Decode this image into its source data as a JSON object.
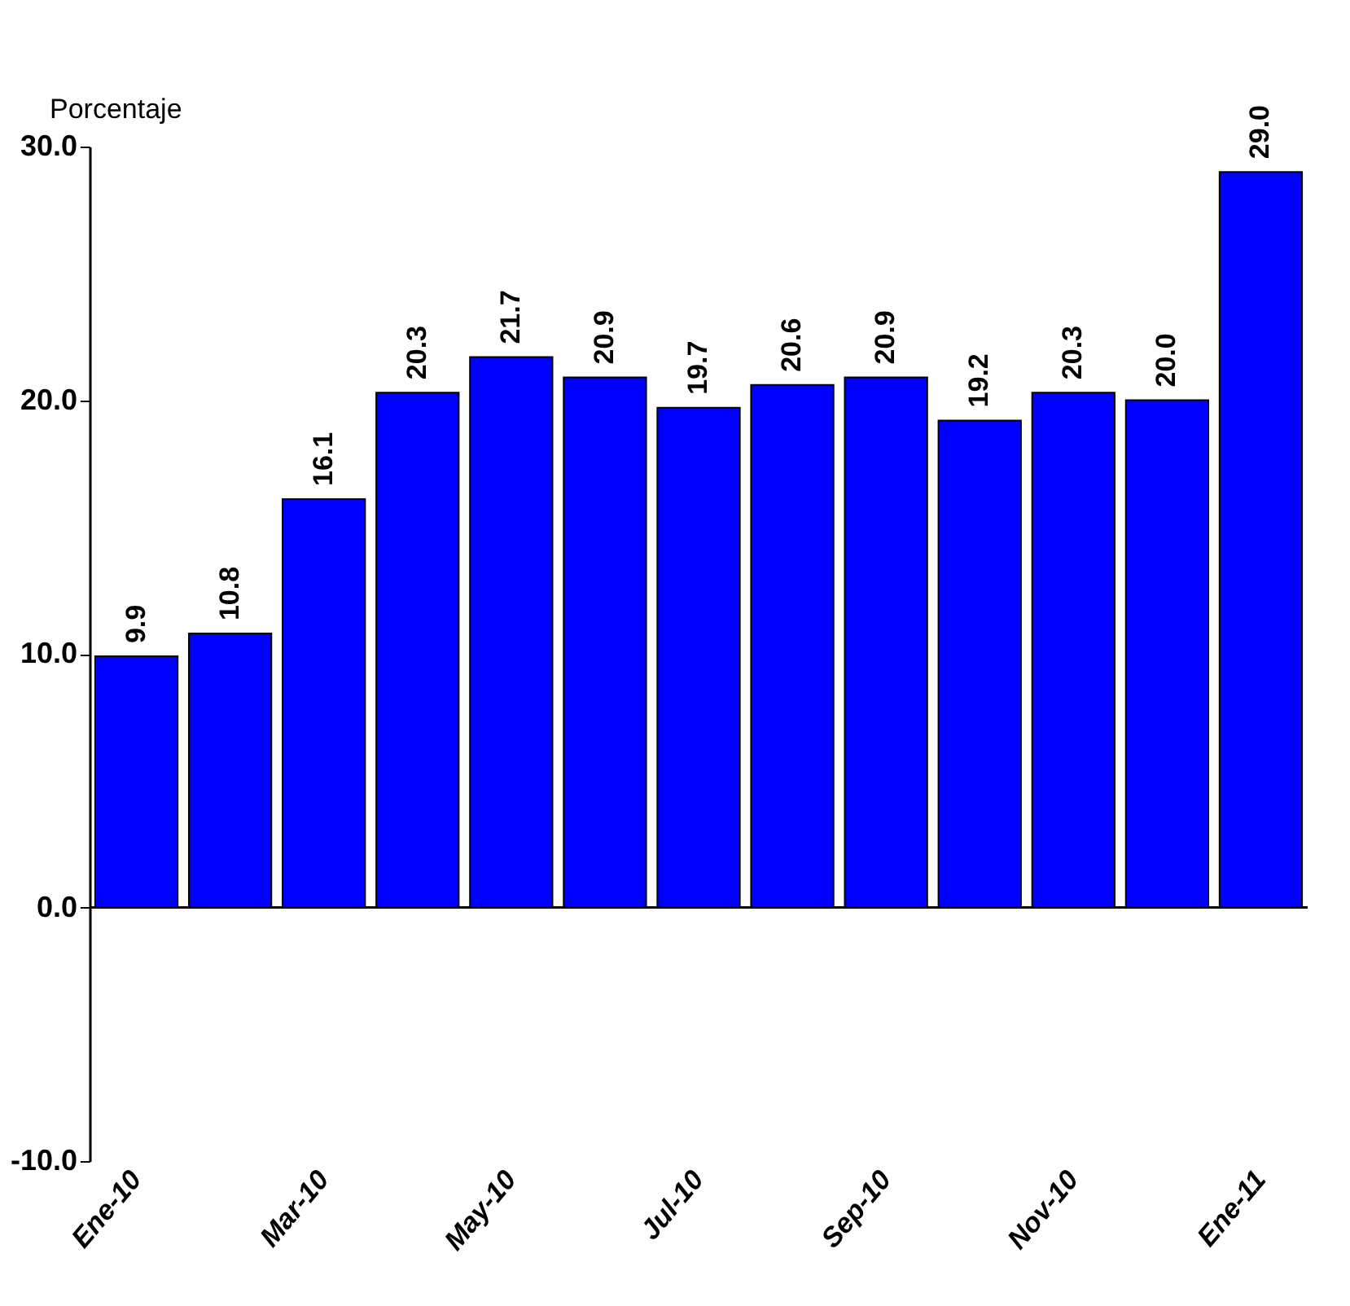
{
  "chart_data": {
    "type": "bar",
    "ylabel": "Porcentaje",
    "categories": [
      "Ene-10",
      null,
      "Mar-10",
      null,
      "May-10",
      null,
      "Jul-10",
      null,
      "Sep-10",
      null,
      "Nov-10",
      null,
      "Ene-11"
    ],
    "values": [
      9.9,
      10.8,
      16.1,
      20.3,
      21.7,
      20.9,
      19.7,
      20.6,
      20.9,
      19.2,
      20.3,
      20.0,
      29.0
    ],
    "value_labels": [
      "9.9",
      "10.8",
      "16.1",
      "20.3",
      "21.7",
      "20.9",
      "19.7",
      "20.6",
      "20.9",
      "19.2",
      "20.3",
      "20.0",
      "29.0"
    ],
    "color": "#0000ff",
    "ylim": [
      -10,
      30
    ],
    "yticks": [
      {
        "value": -10,
        "label": "-10.0"
      },
      {
        "value": 0,
        "label": "0.0"
      },
      {
        "value": 10,
        "label": "10.0"
      },
      {
        "value": 20,
        "label": "20.0"
      },
      {
        "value": 30,
        "label": "30.0"
      }
    ],
    "ref_lines": [
      {
        "axis": "y",
        "value": 0
      }
    ],
    "grid": false
  }
}
